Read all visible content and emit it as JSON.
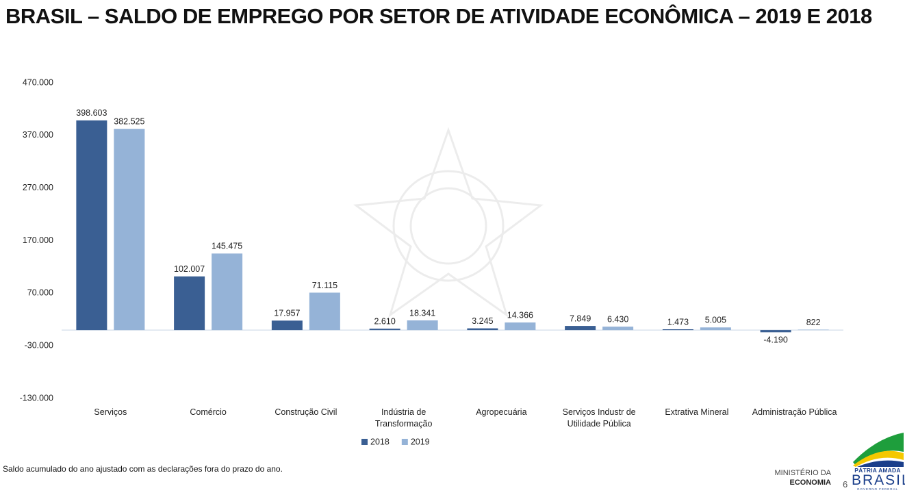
{
  "title": "BRASIL – SALDO DE EMPREGO POR SETOR DE ATIVIDADE ECONÔMICA – 2019 E 2018",
  "footnote": "Saldo acumulado do ano ajustado com as declarações fora do prazo do ano.",
  "ministry": [
    "MINISTÉRIO DA",
    "ECONOMIA"
  ],
  "brand": [
    "PÁTRIA AMADA",
    "BRASIL",
    "GOVERNO FEDERAL"
  ],
  "page_number": "6",
  "chart_data": {
    "type": "bar",
    "categories": [
      "Serviços",
      "Comércio",
      "Construção Civil",
      "Indústria de Transformação",
      "Agropecuária",
      "Serviços Industr de Utilidade Pública",
      "Extrativa Mineral",
      "Administração Pública"
    ],
    "series": [
      {
        "name": "2018",
        "color": "#3a5f93",
        "values": [
          398603,
          102007,
          17957,
          2610,
          3245,
          7849,
          1473,
          -4190
        ],
        "value_labels": [
          "398.603",
          "102.007",
          "17.957",
          "2.610",
          "3.245",
          "7.849",
          "1.473",
          "-4.190"
        ]
      },
      {
        "name": "2019",
        "color": "#95b3d7",
        "values": [
          382525,
          145475,
          71115,
          18341,
          14366,
          6430,
          5005,
          822
        ],
        "value_labels": [
          "382.525",
          "145.475",
          "71.115",
          "18.341",
          "14.366",
          "6.430",
          "5.005",
          "822"
        ]
      }
    ],
    "ylim": [
      -130000,
      470000
    ],
    "yticks": [
      {
        "value": -130000,
        "label": "-130.000"
      },
      {
        "value": -30000,
        "label": "-30.000"
      },
      {
        "value": 70000,
        "label": "70.000"
      },
      {
        "value": 170000,
        "label": "170.000"
      },
      {
        "value": 270000,
        "label": "270.000"
      },
      {
        "value": 370000,
        "label": "370.000"
      },
      {
        "value": 470000,
        "label": "470.000"
      }
    ],
    "grid": false,
    "legend": "bottom"
  }
}
